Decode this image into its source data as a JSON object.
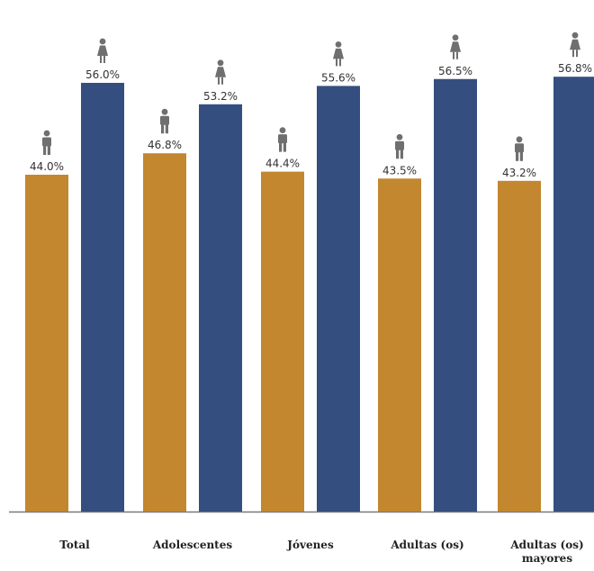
{
  "chart_data": {
    "type": "bar",
    "categories": [
      "Total",
      "Adolescentes",
      "Jóvenes",
      "Adultas (os)",
      "Adultas (os) mayores"
    ],
    "series": [
      {
        "name": "",
        "icon": "male-figure-icon",
        "color": "#c2872f",
        "values": [
          44.0,
          46.8,
          44.4,
          43.5,
          43.2
        ]
      },
      {
        "name": "",
        "icon": "female-figure-icon",
        "color": "#344f7f",
        "values": [
          56.0,
          53.2,
          55.6,
          56.5,
          56.8
        ]
      }
    ],
    "value_labels": [
      [
        "44.0%",
        "46.8%",
        "44.4%",
        "43.5%",
        "43.2%"
      ],
      [
        "56.0%",
        "53.2%",
        "55.6%",
        "56.5%",
        "56.8%"
      ]
    ],
    "title": "",
    "xlabel": "",
    "ylabel": "",
    "ylim": [
      0,
      100
    ],
    "grid": false,
    "legend": "none"
  }
}
